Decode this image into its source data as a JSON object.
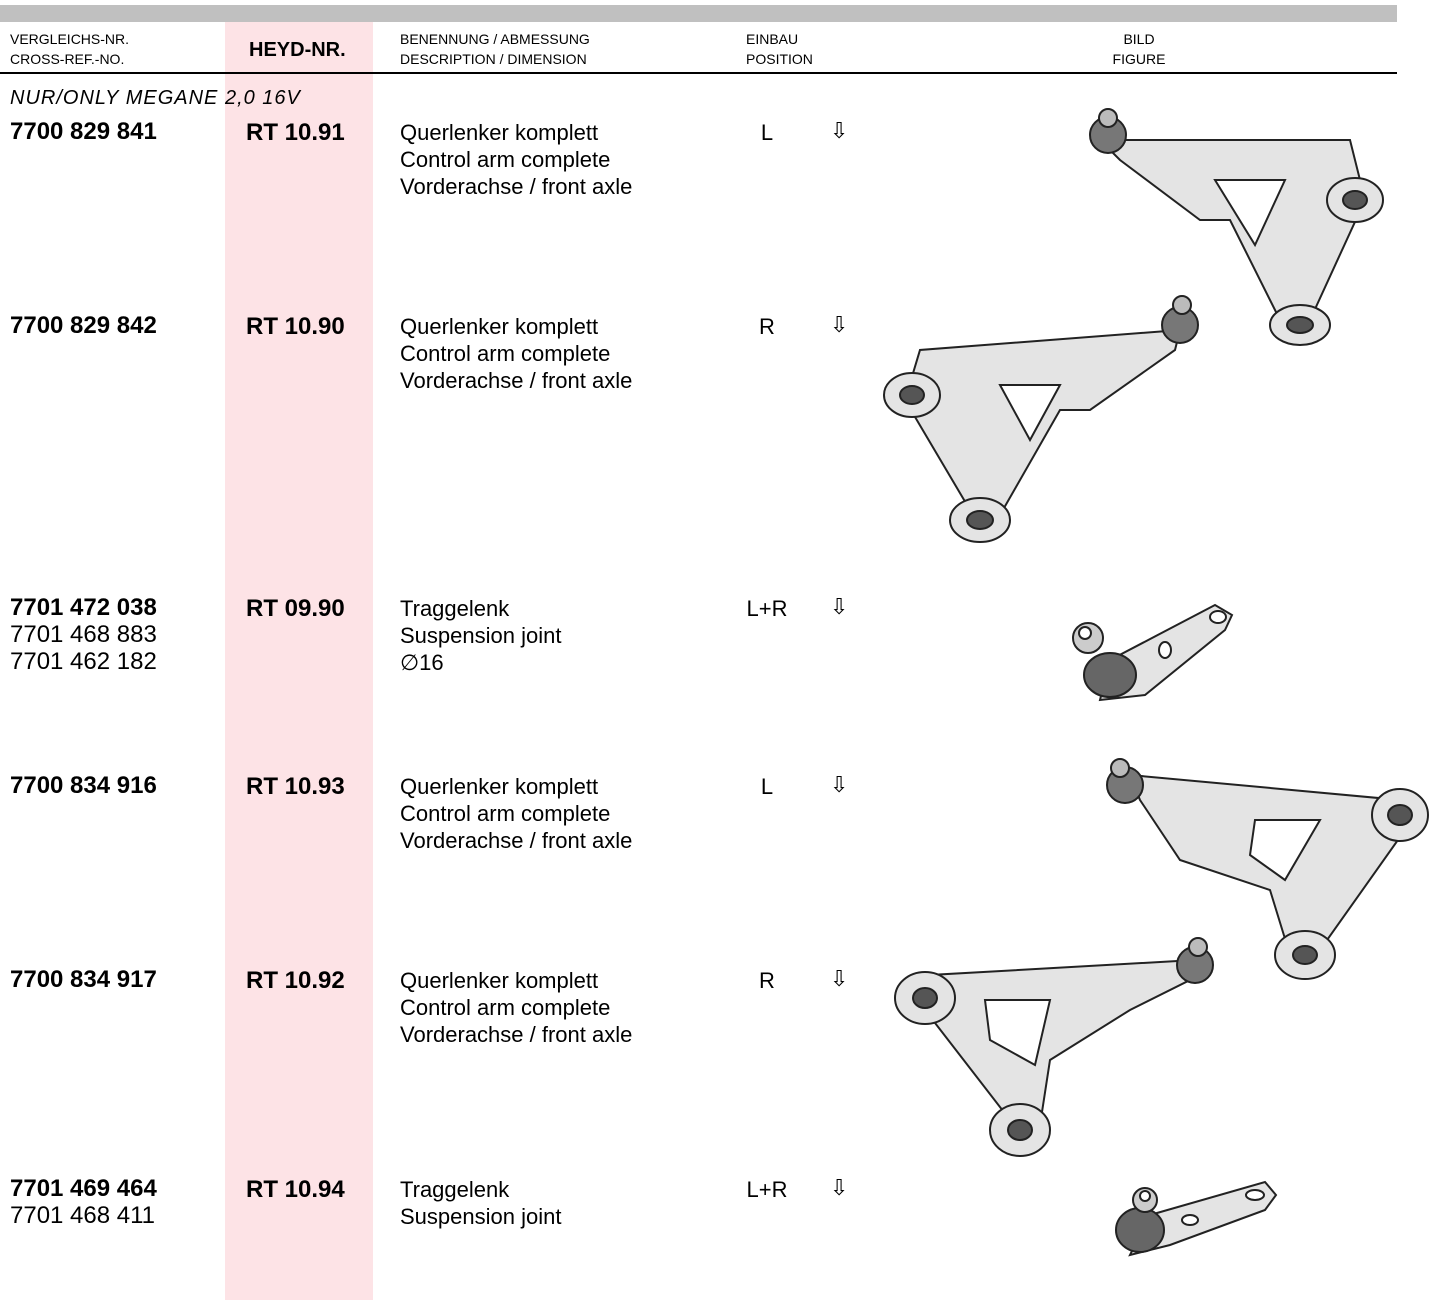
{
  "header": {
    "columns": [
      {
        "line1": "VERGLEICHS-NR.",
        "line2": "CROSS-REF.-NO."
      },
      {
        "line1": "HEYD-NR."
      },
      {
        "line1": "BENENNUNG / ABMESSUNG",
        "line2": "DESCRIPTION / DIMENSION"
      },
      {
        "line1": "EINBAU",
        "line2": "POSITION"
      },
      {
        "line1": "BILD",
        "line2": "FIGURE"
      }
    ]
  },
  "note": "NUR/ONLY MEGANE 2,0 16V",
  "rows": [
    {
      "refs": [
        "7700 829 841"
      ],
      "heyd": "RT 10.91",
      "desc": [
        "Querlenker komplett",
        "Control arm complete",
        "Vorderachse / front axle"
      ],
      "position": "L",
      "arrow": "⇩"
    },
    {
      "refs": [
        "7700 829 842"
      ],
      "heyd": "RT 10.90",
      "desc": [
        "Querlenker komplett",
        "Control arm complete",
        "Vorderachse / front axle"
      ],
      "position": "R",
      "arrow": "⇩"
    },
    {
      "refs": [
        "7701 472 038",
        "7701 468 883",
        "7701 462 182"
      ],
      "heyd": "RT 09.90",
      "desc": [
        "Traggelenk",
        "Suspension joint",
        "∅16"
      ],
      "position": "L+R",
      "arrow": "⇩"
    },
    {
      "refs": [
        "7700 834 916"
      ],
      "heyd": "RT 10.93",
      "desc": [
        "Querlenker komplett",
        "Control arm complete",
        "Vorderachse / front axle"
      ],
      "position": "L",
      "arrow": "⇩"
    },
    {
      "refs": [
        "7700 834 917"
      ],
      "heyd": "RT 10.92",
      "desc": [
        "Querlenker komplett",
        "Control arm complete",
        "Vorderachse / front axle"
      ],
      "position": "R",
      "arrow": "⇩"
    },
    {
      "refs": [
        "7701 469 464",
        "7701 468 411"
      ],
      "heyd": "RT 10.94",
      "desc": [
        "Traggelenk",
        "Suspension joint"
      ],
      "position": "L+R",
      "arrow": "⇩"
    }
  ]
}
